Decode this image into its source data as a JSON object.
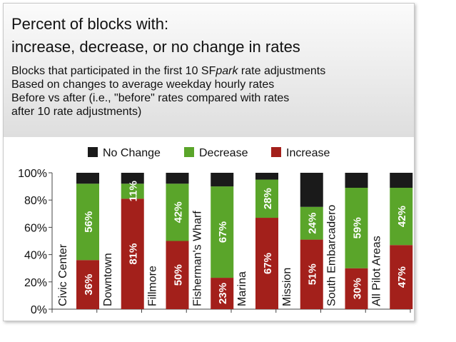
{
  "title": {
    "line1": "Percent of blocks with:",
    "line2": "increase, decrease, or no change in rates"
  },
  "subtitle": {
    "line1_prefix": "Blocks that participated in the first 10 SF",
    "line1_italic": "park",
    "line1_suffix": " rate adjustments",
    "line2": "Based on changes to average weekday hourly rates",
    "line3": "Before vs after (i.e., \"before\" rates compared with rates",
    "line4": "after 10 rate adjustments)"
  },
  "colors": {
    "no_change": "#1a1a1a",
    "decrease": "#5aa52a",
    "increase": "#a3201b"
  },
  "chart_data": {
    "type": "bar",
    "stacked": true,
    "categories": [
      "Civic Center",
      "Downtown",
      "Fillmore",
      "Fisherman's Wharf",
      "Marina",
      "Mission",
      "South Embarcadero",
      "All Pilot Areas"
    ],
    "series": [
      {
        "name": "Increase",
        "values": [
          36,
          81,
          50,
          23,
          67,
          51,
          30,
          47
        ],
        "labels": [
          "36%",
          "81%",
          "50%",
          "23%",
          "67%",
          "51%",
          "30%",
          "47%"
        ]
      },
      {
        "name": "Decrease",
        "values": [
          56,
          11,
          42,
          67,
          28,
          24,
          59,
          42
        ],
        "labels": [
          "56%",
          "11%",
          "42%",
          "67%",
          "28%",
          "24%",
          "59%",
          "42%"
        ]
      },
      {
        "name": "No Change",
        "values": [
          8,
          8,
          8,
          10,
          5,
          25,
          11,
          11
        ]
      }
    ],
    "legend": [
      "No Change",
      "Decrease",
      "Increase"
    ],
    "legend_position": "top",
    "ylim": [
      0,
      100
    ],
    "yticks": [
      "0%",
      "20%",
      "40%",
      "60%",
      "80%",
      "100%"
    ],
    "grid": false
  }
}
